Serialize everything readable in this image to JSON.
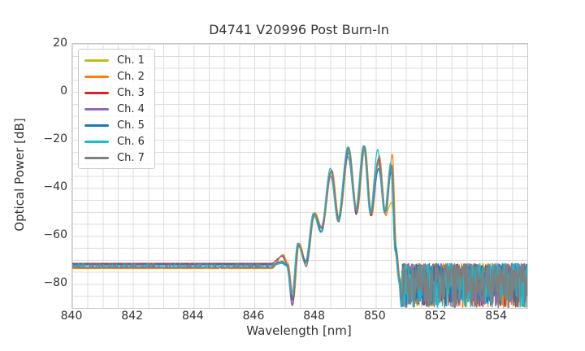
{
  "chart_data": {
    "type": "line",
    "title": "D4741 V20996 Post Burn-In",
    "xlabel": "Wavelength [nm]",
    "ylabel": "Optical Power [dB]",
    "xlim": [
      840,
      855
    ],
    "ylim": [
      -90,
      20
    ],
    "xticks": [
      840,
      842,
      844,
      846,
      848,
      850,
      852,
      854
    ],
    "yticks": {
      "values": [
        20,
        0,
        -20,
        -40,
        -60,
        -80
      ],
      "labels": [
        "20",
        "0",
        "−20",
        "−40",
        "−60",
        "−80"
      ]
    },
    "grid": {
      "show": true,
      "x_minor_step_nm": 0.5,
      "y_minor_step_dB": 5,
      "color": "#dcdcdc"
    },
    "legend_position": "upper left",
    "mode_centers_nm": [
      846.92,
      847.45,
      847.97,
      848.53,
      849.1,
      849.62,
      850.09,
      850.52
    ],
    "dip_anchors": [
      [
        846.55,
        -72.5
      ],
      [
        847.08,
        -71.8
      ],
      [
        847.26,
        -86.0
      ],
      [
        847.7,
        -71.5
      ],
      [
        848.21,
        -57.5
      ],
      [
        848.77,
        -53.0
      ],
      [
        849.36,
        -50.0
      ],
      [
        849.84,
        -51.0
      ],
      [
        850.31,
        -50.5
      ],
      [
        850.66,
        -65.0
      ],
      [
        850.78,
        -79.0
      ],
      [
        850.86,
        -87.0
      ]
    ],
    "noise_floor": {
      "top_dB": -71.5,
      "depth_dB": 18.4,
      "left_region_nm": [
        840.0,
        847.08
      ],
      "right_region_nm": [
        850.87,
        855.0
      ]
    },
    "series": [
      {
        "name": "Ch. 1",
        "color": "#bcbd22",
        "offset_nm": 0.01,
        "mode_peaks_dB": [
          -70.5,
          -64.0,
          -52.0,
          -33.5,
          -24.0,
          -23.3,
          -28.5,
          -46.0
        ]
      },
      {
        "name": "Ch. 2",
        "color": "#ff7f0e",
        "offset_nm": 0.03,
        "mode_peaks_dB": [
          -67.8,
          -63.0,
          -50.3,
          -32.6,
          -24.0,
          -23.0,
          -26.5,
          -26.0
        ]
      },
      {
        "name": "Ch. 3",
        "color": "#d62728",
        "offset_nm": 0.0,
        "mode_peaks_dB": [
          -68.5,
          -63.5,
          -51.0,
          -33.0,
          -23.2,
          -23.0,
          -28.0,
          -31.0
        ]
      },
      {
        "name": "Ch. 4",
        "color": "#9467bd",
        "offset_nm": -0.012,
        "mode_peaks_dB": [
          -71.0,
          -64.0,
          -51.5,
          -35.0,
          -27.0,
          -23.5,
          -29.5,
          -32.5
        ]
      },
      {
        "name": "Ch. 5",
        "color": "#1f77b4",
        "offset_nm": 0.005,
        "mode_peaks_dB": [
          -70.8,
          -63.8,
          -51.2,
          -33.2,
          -25.4,
          -23.0,
          -32.0,
          -33.0
        ]
      },
      {
        "name": "Ch. 6",
        "color": "#17becf",
        "offset_nm": -0.022,
        "mode_peaks_dB": [
          -71.5,
          -63.0,
          -50.5,
          -31.8,
          -23.0,
          -22.4,
          -24.0,
          -29.5
        ]
      },
      {
        "name": "Ch. 7",
        "color": "#7f7f7f",
        "offset_nm": 0.012,
        "mode_peaks_dB": [
          -68.0,
          -63.4,
          -50.8,
          -32.8,
          -23.0,
          -22.5,
          -27.5,
          -30.5
        ]
      }
    ]
  }
}
